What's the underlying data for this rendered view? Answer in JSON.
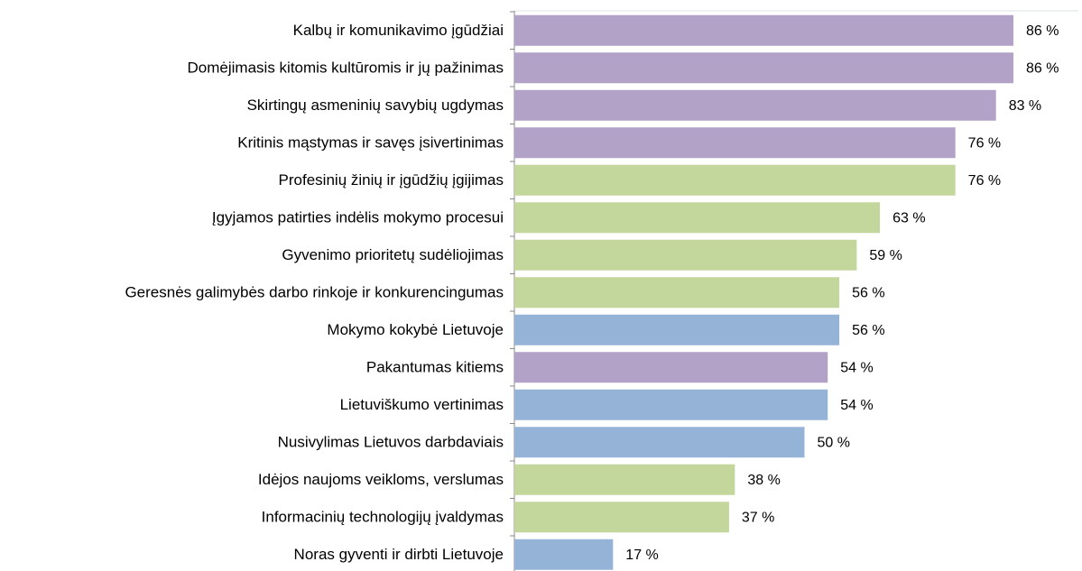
{
  "chart_data": {
    "type": "barh",
    "categories": [
      "Kalbų ir komunikavimo įgūdžiai",
      "Domėjimasis kitomis kultūromis ir jų pažinimas",
      "Skirtingų asmeninių savybių ugdymas",
      "Kritinis mąstymas ir savęs įsivertinimas",
      "Profesinių žinių ir įgūdžių įgijimas",
      "Įgyjamos patirties indėlis mokymo procesui",
      "Gyvenimo prioritetų sudėliojimas",
      "Geresnės galimybės darbo rinkoje ir konkurencingumas",
      "Mokymo kokybė Lietuvoje",
      "Pakantumas kitiems",
      "Lietuviškumo vertinimas",
      "Nusivylimas Lietuvos darbdaviais",
      "Idėjos naujoms veikloms, verslumas",
      "Informacinių technologijų įvaldymas",
      "Noras gyventi ir dirbti Lietuvoje"
    ],
    "values": [
      86,
      86,
      83,
      76,
      76,
      63,
      59,
      56,
      56,
      54,
      54,
      50,
      38,
      37,
      17
    ],
    "value_labels": [
      "86 %",
      "86 %",
      "83 %",
      "76 %",
      "76 %",
      "63 %",
      "59 %",
      "56 %",
      "56 %",
      "54 %",
      "54 %",
      "50 %",
      "38 %",
      "37 %",
      "17 %"
    ],
    "colors": [
      "#b3a2c7",
      "#b3a2c7",
      "#b3a2c7",
      "#b3a2c7",
      "#c3d69b",
      "#c3d69b",
      "#c3d69b",
      "#c3d69b",
      "#95b3d7",
      "#b3a2c7",
      "#95b3d7",
      "#95b3d7",
      "#c3d69b",
      "#c3d69b",
      "#95b3d7"
    ],
    "xlim": [
      0,
      100
    ]
  }
}
